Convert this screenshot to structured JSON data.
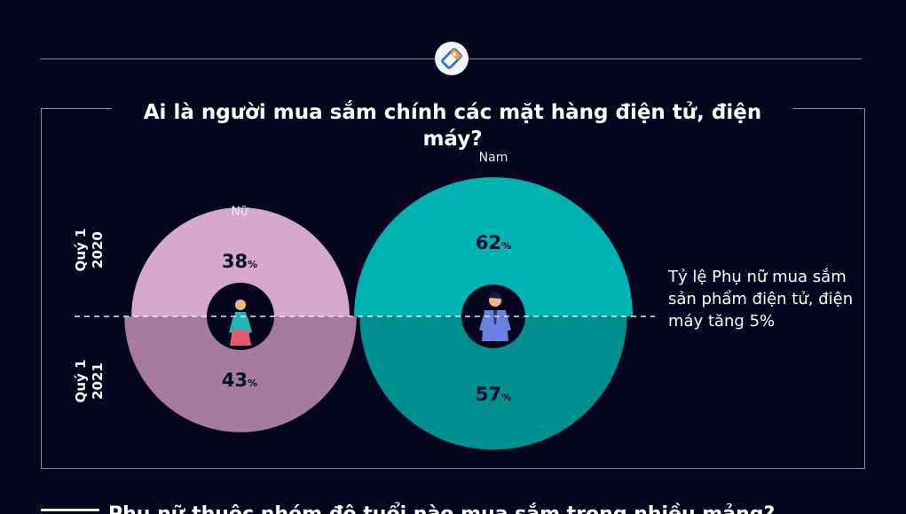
{
  "title": "Ai là người mua sắm chính các mặt hàng điện tử, điện máy?",
  "period_top": "Quý 1\n2020",
  "period_bottom": "Quý 1\n2021",
  "note": "Tỷ lệ Phụ nữ mua sắm sản phẩm điện tử, điện máy tăng 5%",
  "bottom_heading": "Phụ nữ thuộc nhóm độ tuổi nào mua sắm trong nhiều mảng?",
  "colors": {
    "background": "#05041f",
    "female_2020": "#d6a8cf",
    "female_2021": "#a77a9f",
    "male_2020": "#00b3b3",
    "male_2021": "#008f8f",
    "value_text": "#0b0b2a"
  },
  "chart_data": {
    "type": "pie",
    "title": "Ai là người mua sắm chính các mặt hàng điện tử, điện máy?",
    "categories": [
      "Nữ",
      "Nam"
    ],
    "series": [
      {
        "name": "Quý 1 2020",
        "values": [
          38,
          62
        ]
      },
      {
        "name": "Quý 1 2021",
        "values": [
          43,
          57
        ]
      }
    ],
    "unit": "%"
  }
}
